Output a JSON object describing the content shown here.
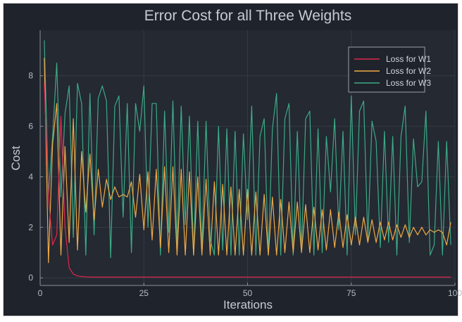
{
  "chart_data": {
    "type": "line",
    "title": "Error Cost for all Three Weights",
    "xlabel": "Iterations",
    "ylabel": "Cost",
    "xlim": [
      0,
      100
    ],
    "ylim": [
      -0.3,
      9.8
    ],
    "xticks": [
      0,
      25,
      50,
      75,
      100
    ],
    "yticks": [
      0,
      2,
      4,
      6,
      8
    ],
    "grid": true,
    "legend_position": "top-right",
    "background": "#1f232b",
    "x": [
      1,
      2,
      3,
      4,
      5,
      6,
      7,
      8,
      9,
      10,
      11,
      12,
      13,
      14,
      15,
      16,
      17,
      18,
      19,
      20,
      21,
      22,
      23,
      24,
      25,
      26,
      27,
      28,
      29,
      30,
      31,
      32,
      33,
      34,
      35,
      36,
      37,
      38,
      39,
      40,
      41,
      42,
      43,
      44,
      45,
      46,
      47,
      48,
      49,
      50,
      51,
      52,
      53,
      54,
      55,
      56,
      57,
      58,
      59,
      60,
      61,
      62,
      63,
      64,
      65,
      66,
      67,
      68,
      69,
      70,
      71,
      72,
      73,
      74,
      75,
      76,
      77,
      78,
      79,
      80,
      81,
      82,
      83,
      84,
      85,
      86,
      87,
      88,
      89,
      90,
      91,
      92,
      93,
      94,
      95,
      96,
      97,
      98,
      99
    ],
    "series": [
      {
        "name": "Loss for W1",
        "color": "#e0284f",
        "values": [
          7.7,
          3.2,
          1.3,
          1.7,
          6.4,
          2.0,
          0.4,
          0.15,
          0.08,
          0.05,
          0.04,
          0.03,
          0.03,
          0.03,
          0.03,
          0.03,
          0.03,
          0.03,
          0.03,
          0.03,
          0.03,
          0.03,
          0.03,
          0.03,
          0.03,
          0.03,
          0.03,
          0.03,
          0.03,
          0.03,
          0.03,
          0.03,
          0.03,
          0.03,
          0.03,
          0.03,
          0.03,
          0.03,
          0.03,
          0.03,
          0.03,
          0.03,
          0.03,
          0.03,
          0.03,
          0.03,
          0.03,
          0.03,
          0.03,
          0.03,
          0.03,
          0.03,
          0.03,
          0.03,
          0.03,
          0.03,
          0.03,
          0.03,
          0.03,
          0.03,
          0.03,
          0.03,
          0.03,
          0.03,
          0.03,
          0.03,
          0.03,
          0.03,
          0.03,
          0.03,
          0.03,
          0.03,
          0.03,
          0.03,
          0.03,
          0.03,
          0.03,
          0.03,
          0.03,
          0.03,
          0.03,
          0.03,
          0.03,
          0.03,
          0.03,
          0.03,
          0.03,
          0.03,
          0.03,
          0.03,
          0.03,
          0.03,
          0.03,
          0.03,
          0.03,
          0.03,
          0.03,
          0.03,
          0.03
        ]
      },
      {
        "name": "Loss for W2",
        "color": "#f0a946",
        "values": [
          8.7,
          0.6,
          5.3,
          6.9,
          0.9,
          5.2,
          1.4,
          6.3,
          1.1,
          5.0,
          2.6,
          4.9,
          2.3,
          4.3,
          2.8,
          3.9,
          3.1,
          3.6,
          3.2,
          3.3,
          3.2,
          3.8,
          2.4,
          4.1,
          1.9,
          4.2,
          1.5,
          4.3,
          1.2,
          4.4,
          1.0,
          4.4,
          0.9,
          4.3,
          0.9,
          4.2,
          0.9,
          4.0,
          0.9,
          3.9,
          0.9,
          3.8,
          0.9,
          3.7,
          0.9,
          3.6,
          0.9,
          3.5,
          0.9,
          3.5,
          0.9,
          3.4,
          0.9,
          3.3,
          0.9,
          3.2,
          0.9,
          3.1,
          1.0,
          3.0,
          1.0,
          3.0,
          1.0,
          2.9,
          1.0,
          2.8,
          1.1,
          2.7,
          1.1,
          2.7,
          1.2,
          2.6,
          1.2,
          2.5,
          1.3,
          2.4,
          1.3,
          2.4,
          1.4,
          2.3,
          1.4,
          2.2,
          1.5,
          2.2,
          1.5,
          2.1,
          1.6,
          2.1,
          1.6,
          2.0,
          1.7,
          2.0,
          1.7,
          1.9,
          1.8,
          1.9,
          1.8,
          1.3,
          2.2
        ]
      },
      {
        "name": "Loss for W3",
        "color": "#3caa85",
        "values": [
          9.4,
          3.3,
          5.6,
          8.5,
          3.2,
          6.5,
          7.6,
          1.6,
          7.7,
          6.9,
          0.9,
          7.3,
          1.7,
          7.1,
          7.6,
          7.0,
          0.8,
          6.8,
          7.2,
          2.4,
          6.9,
          1.0,
          6.9,
          5.8,
          7.6,
          2.0,
          6.9,
          6.9,
          0.9,
          6.6,
          1.8,
          7.0,
          1.3,
          6.8,
          2.1,
          6.4,
          0.9,
          6.2,
          1.2,
          6.2,
          1.5,
          0.9,
          6.0,
          1.1,
          5.9,
          0.9,
          5.8,
          0.9,
          5.7,
          2.3,
          6.8,
          0.9,
          5.6,
          6.3,
          0.9,
          5.9,
          7.3,
          0.9,
          6.3,
          6.9,
          0.9,
          5.8,
          1.1,
          6.3,
          6.6,
          0.9,
          5.9,
          1.0,
          5.6,
          3.4,
          6.3,
          1.9,
          5.8,
          0.9,
          7.2,
          1.7,
          6.6,
          7.0,
          1.5,
          6.2,
          5.4,
          1.2,
          5.8,
          1.4,
          5.6,
          0.9,
          5.6,
          6.8,
          1.4,
          5.5,
          3.6,
          3.8,
          6.6,
          0.9,
          1.3,
          5.4,
          0.9,
          5.4,
          1.3
        ]
      }
    ]
  }
}
